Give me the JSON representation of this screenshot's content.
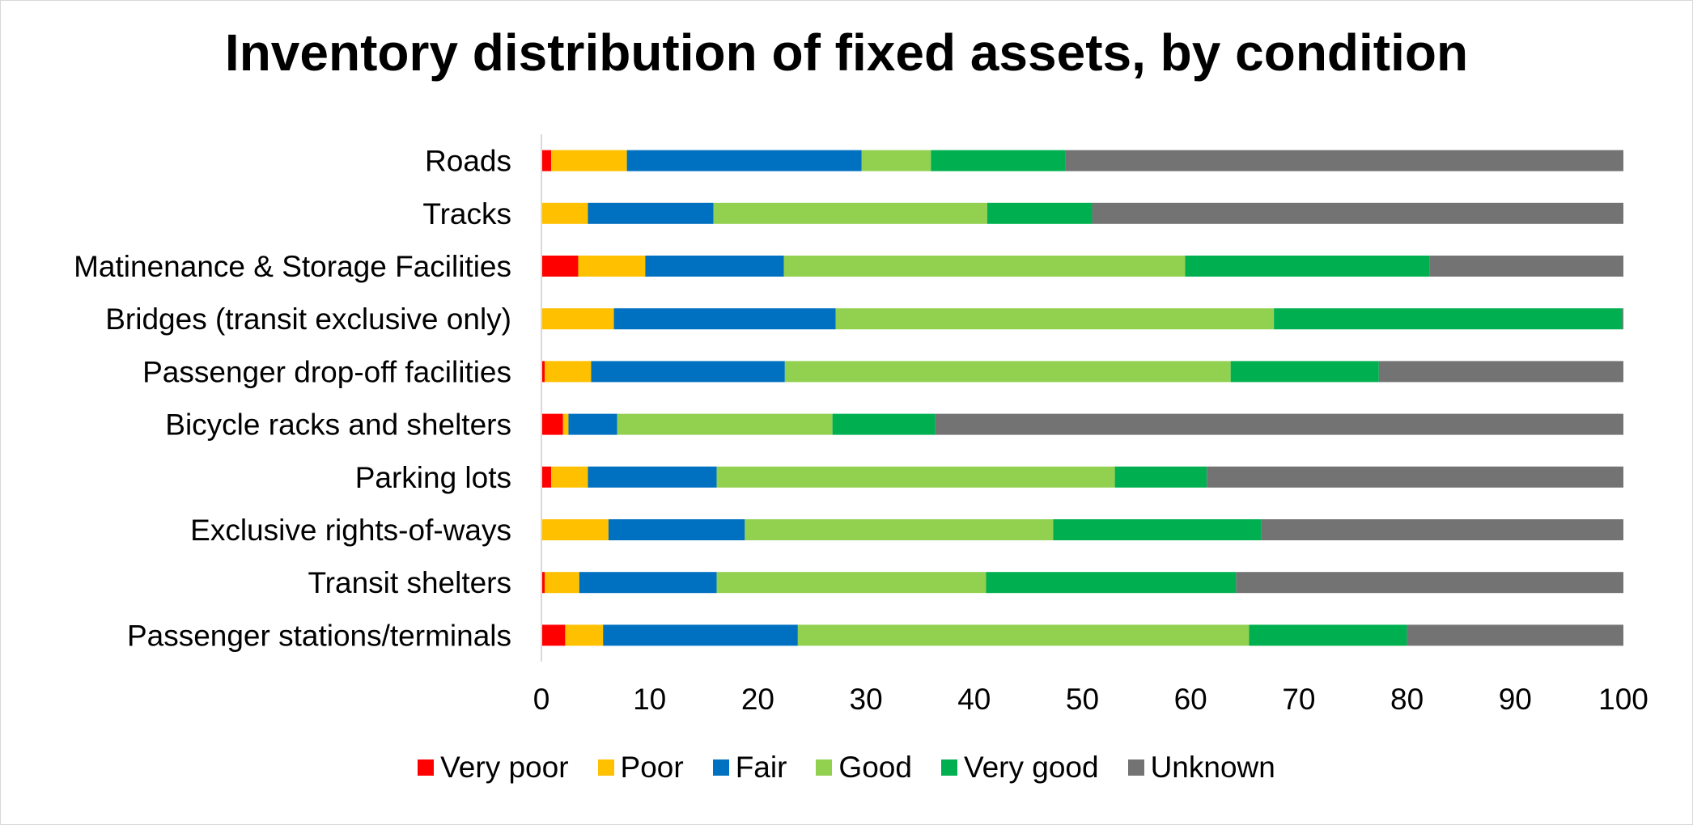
{
  "chart_data": {
    "type": "bar",
    "orientation": "horizontal",
    "stacked": true,
    "title": "Inventory distribution of fixed assets, by condition",
    "xlabel": "",
    "ylabel": "",
    "xlim": [
      0,
      100
    ],
    "xticks": [
      0,
      10,
      20,
      30,
      40,
      50,
      60,
      70,
      80,
      90,
      100
    ],
    "grid": false,
    "legend_position": "bottom",
    "categories": [
      "Roads",
      "Tracks",
      "Matinenance & Storage Facilities",
      "Bridges (transit exclusive only)",
      "Passenger drop-off facilities",
      "Bicycle racks and shelters",
      "Parking lots",
      "Exclusive rights-of-ways",
      "Transit shelters",
      "Passenger stations/terminals"
    ],
    "series": [
      {
        "name": "Very poor",
        "color": "#ff0000",
        "values": [
          0.9,
          0,
          3.4,
          0,
          0.3,
          2.0,
          0.9,
          0,
          0.3,
          2.2
        ]
      },
      {
        "name": "Poor",
        "color": "#ffc000",
        "values": [
          7.0,
          4.3,
          6.2,
          6.7,
          4.3,
          0.5,
          3.4,
          6.2,
          3.2,
          3.5
        ]
      },
      {
        "name": "Fair",
        "color": "#0070c0",
        "values": [
          21.7,
          11.6,
          12.8,
          20.5,
          17.9,
          4.5,
          11.9,
          12.6,
          12.7,
          18.0
        ]
      },
      {
        "name": "Good",
        "color": "#92d050",
        "values": [
          6.4,
          25.3,
          37.1,
          40.5,
          41.2,
          19.9,
          36.8,
          28.5,
          24.9,
          41.7
        ]
      },
      {
        "name": "Very good",
        "color": "#00b050",
        "values": [
          12.4,
          9.7,
          22.6,
          32.2,
          13.7,
          9.5,
          8.5,
          19.2,
          23.1,
          14.6
        ]
      },
      {
        "name": "Unknown",
        "color": "#737373",
        "values": [
          51.6,
          49.1,
          17.9,
          0.1,
          22.6,
          63.6,
          38.5,
          33.5,
          35.8,
          20.0
        ]
      }
    ]
  }
}
